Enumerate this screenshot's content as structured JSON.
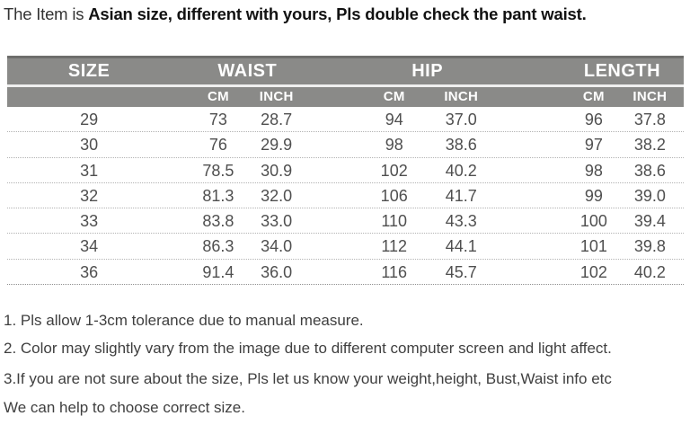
{
  "title": {
    "prefix": "The Item is ",
    "bold": "Asian size, different with yours, Pls double check the pant waist."
  },
  "table": {
    "groups": [
      "SIZE",
      "WAIST",
      "HIP",
      "LENGTH"
    ],
    "unit_headers": [
      "CM",
      "INCH",
      "CM",
      "INCH",
      "CM",
      "INCH"
    ],
    "columns": [
      "SIZE",
      "WAIST CM",
      "WAIST INCH",
      "HIP CM",
      "HIP INCH",
      "LENGTH CM",
      "LENGTH INCH"
    ],
    "rows": [
      [
        "29",
        "73",
        "28.7",
        "94",
        "37.0",
        "96",
        "37.8"
      ],
      [
        "30",
        "76",
        "29.9",
        "98",
        "38.6",
        "97",
        "38.2"
      ],
      [
        "31",
        "78.5",
        "30.9",
        "102",
        "40.2",
        "98",
        "38.6"
      ],
      [
        "32",
        "81.3",
        "32.0",
        "106",
        "41.7",
        "99",
        "39.0"
      ],
      [
        "33",
        "83.8",
        "33.0",
        "110",
        "43.3",
        "100",
        "39.4"
      ],
      [
        "34",
        "86.3",
        "34.0",
        "112",
        "44.1",
        "101",
        "39.8"
      ],
      [
        "36",
        "91.4",
        "36.0",
        "116",
        "45.7",
        "102",
        "40.2"
      ]
    ]
  },
  "notes": [
    "1. Pls allow 1-3cm tolerance due to manual measure.",
    "2. Color may slightly vary from the image due to different computer screen and light affect.",
    "3.If you are not sure about the size, Pls let us know your weight,height, Bust,Waist info etc",
    "We can help to choose correct size."
  ],
  "colors": {
    "header_bg": "#8a8a88",
    "header_top_edge": "#6e6e6c",
    "header_text": "#ffffff",
    "body_text": "#4f4f4f",
    "note_text": "#3f3f3f"
  }
}
